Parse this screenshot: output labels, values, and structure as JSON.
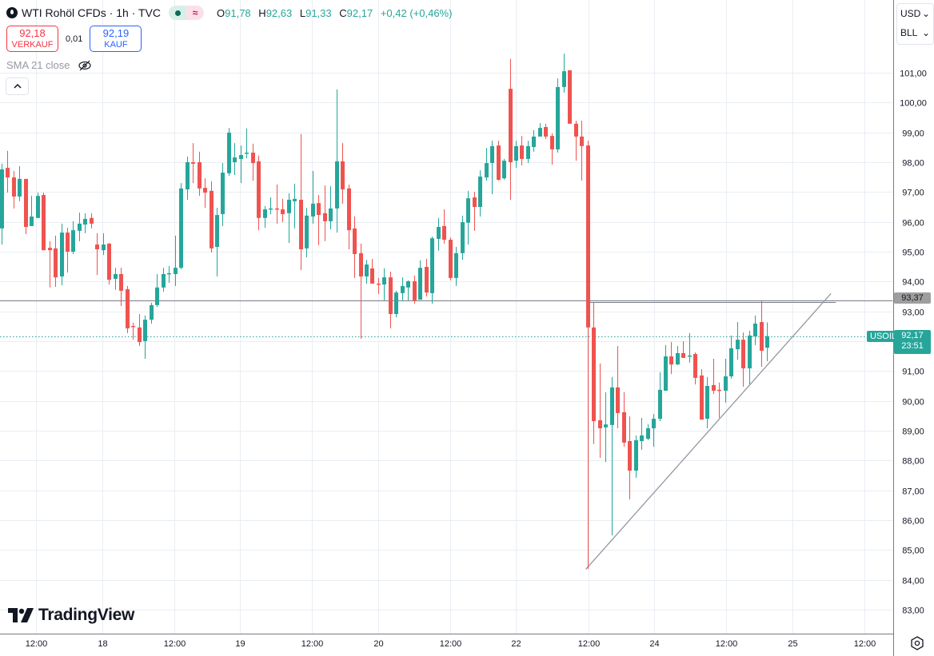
{
  "header": {
    "title": "WTI Rohöl CFDs · 1h · TVC",
    "open_label": "O",
    "open": "91,78",
    "high_label": "H",
    "high": "92,63",
    "low_label": "L",
    "low": "91,33",
    "close_label": "C",
    "close": "92,17",
    "change": "+0,42 (+0,46%)"
  },
  "trade": {
    "sell_price": "92,18",
    "sell_label": "VERKAUF",
    "spread": "0,01",
    "buy_price": "92,19",
    "buy_label": "KAUF"
  },
  "indicator": {
    "label": "SMA 21 close"
  },
  "controls": {
    "currency": "USD",
    "unit": "BLL"
  },
  "price_labels": {
    "symbol": "USOIL",
    "current": "92,17",
    "countdown": "23:51",
    "hline": "93,37"
  },
  "brand": {
    "name": "TradingView"
  },
  "colors": {
    "up": "#26a69a",
    "down": "#ef5350",
    "grid": "#e9eef3",
    "line": "#787b86"
  },
  "chart_data": {
    "type": "candlestick",
    "interval": "1h",
    "ylim": [
      82.6,
      102.5
    ],
    "y_ticks": [
      83,
      84,
      85,
      86,
      87,
      88,
      89,
      90,
      91,
      92,
      93,
      94,
      95,
      96,
      97,
      98,
      99,
      100,
      101
    ],
    "x_ticks": [
      {
        "label": "12:00",
        "i": 5.8
      },
      {
        "label": "18",
        "i": 16.9
      },
      {
        "label": "12:00",
        "i": 28.9
      },
      {
        "label": "19",
        "i": 39.9
      },
      {
        "label": "12:00",
        "i": 51.9
      },
      {
        "label": "20",
        "i": 63.0
      },
      {
        "label": "12:00",
        "i": 75.0
      },
      {
        "label": "22",
        "i": 86.0
      },
      {
        "label": "12:00",
        "i": 98.2
      },
      {
        "label": "24",
        "i": 109.1
      },
      {
        "label": "12:00",
        "i": 121.2
      },
      {
        "label": "25",
        "i": 132.3
      },
      {
        "label": "12:00",
        "i": 144.3
      }
    ],
    "current_price": 92.17,
    "horizontal_lines": [
      {
        "price": 93.37,
        "from": -1,
        "to": 149
      },
      {
        "price": 93.3,
        "from": 98,
        "to": 139.5
      }
    ],
    "trend_line": {
      "from": {
        "i": 97.7,
        "price": 84.35
      },
      "to": {
        "i": 138.7,
        "price": 93.6
      }
    },
    "ohlc": [
      [
        95.78,
        97.95,
        95.24,
        97.76
      ],
      [
        97.81,
        98.38,
        96.98,
        97.49
      ],
      [
        97.49,
        97.71,
        96.45,
        96.85
      ],
      [
        96.85,
        97.87,
        96.69,
        97.44
      ],
      [
        97.44,
        97.44,
        95.59,
        95.83
      ],
      [
        95.86,
        96.87,
        95.86,
        96.18
      ],
      [
        96.13,
        96.98,
        96.13,
        96.87
      ],
      [
        96.9,
        96.98,
        95.05,
        95.05
      ],
      [
        95.13,
        95.35,
        93.8,
        95.05
      ],
      [
        95.11,
        95.54,
        93.82,
        94.14
      ],
      [
        94.17,
        95.94,
        93.87,
        95.64
      ],
      [
        95.64,
        95.8,
        94.3,
        95.0
      ],
      [
        95.0,
        96.02,
        94.92,
        95.72
      ],
      [
        95.7,
        96.31,
        95.35,
        95.94
      ],
      [
        95.91,
        96.29,
        95.62,
        96.1
      ],
      [
        96.13,
        96.29,
        95.78,
        95.94
      ],
      [
        95.24,
        95.62,
        94.22,
        95.08
      ],
      [
        95.05,
        95.62,
        94.89,
        95.24
      ],
      [
        95.27,
        95.29,
        93.9,
        94.06
      ],
      [
        94.09,
        94.46,
        93.72,
        94.25
      ],
      [
        94.25,
        94.46,
        93.18,
        93.69
      ],
      [
        93.74,
        93.85,
        92.27,
        92.43
      ],
      [
        92.51,
        92.62,
        92.05,
        92.48
      ],
      [
        92.46,
        92.91,
        91.84,
        91.97
      ],
      [
        92.0,
        92.86,
        91.41,
        92.72
      ],
      [
        92.72,
        93.29,
        92.59,
        93.21
      ],
      [
        93.21,
        94.25,
        93.15,
        93.8
      ],
      [
        93.8,
        94.46,
        93.66,
        94.25
      ],
      [
        94.25,
        94.52,
        93.96,
        94.28
      ],
      [
        94.25,
        95.54,
        93.85,
        94.46
      ],
      [
        94.46,
        97.3,
        94.41,
        97.12
      ],
      [
        97.09,
        98.19,
        96.74,
        98.0
      ],
      [
        98.0,
        98.64,
        97.3,
        97.95
      ],
      [
        98.0,
        98.35,
        96.87,
        97.12
      ],
      [
        97.14,
        97.46,
        96.47,
        96.98
      ],
      [
        97.04,
        97.36,
        94.97,
        95.11
      ],
      [
        95.16,
        96.47,
        94.17,
        96.23
      ],
      [
        96.26,
        97.97,
        95.86,
        97.65
      ],
      [
        97.63,
        99.15,
        97.54,
        98.99
      ],
      [
        98.0,
        98.64,
        97.57,
        98.16
      ],
      [
        98.11,
        98.56,
        97.3,
        98.24
      ],
      [
        98.28,
        99.13,
        98.13,
        98.32
      ],
      [
        98.32,
        98.62,
        97.38,
        97.97
      ],
      [
        98.03,
        98.22,
        95.72,
        96.13
      ],
      [
        96.13,
        96.53,
        95.8,
        96.42
      ],
      [
        96.42,
        96.82,
        96.26,
        96.45
      ],
      [
        96.45,
        97.25,
        95.94,
        96.42
      ],
      [
        96.42,
        96.77,
        95.99,
        96.26
      ],
      [
        96.29,
        96.96,
        95.29,
        96.74
      ],
      [
        96.69,
        97.28,
        95.78,
        96.77
      ],
      [
        96.74,
        98.94,
        94.38,
        95.08
      ],
      [
        95.11,
        96.47,
        94.81,
        96.21
      ],
      [
        96.18,
        97.71,
        95.94,
        96.61
      ],
      [
        96.63,
        96.9,
        95.22,
        96.23
      ],
      [
        96.29,
        97.22,
        95.35,
        96.02
      ],
      [
        96.02,
        97.2,
        95.75,
        96.45
      ],
      [
        96.45,
        100.44,
        95.64,
        98.03
      ],
      [
        98.03,
        98.64,
        96.61,
        97.09
      ],
      [
        97.12,
        97.25,
        95.08,
        95.72
      ],
      [
        95.78,
        96.18,
        94.12,
        94.92
      ],
      [
        94.95,
        95.27,
        92.08,
        94.17
      ],
      [
        94.17,
        94.73,
        93.93,
        94.57
      ],
      [
        94.44,
        94.76,
        93.93,
        93.93
      ],
      [
        93.93,
        94.12,
        93.58,
        93.9
      ],
      [
        93.9,
        94.44,
        93.37,
        94.14
      ],
      [
        94.14,
        94.33,
        92.43,
        92.91
      ],
      [
        92.91,
        93.69,
        92.8,
        93.63
      ],
      [
        93.61,
        94.14,
        93.34,
        93.85
      ],
      [
        93.8,
        94.04,
        93.37,
        94.01
      ],
      [
        94.01,
        94.2,
        93.26,
        93.37
      ],
      [
        93.39,
        94.71,
        93.39,
        94.46
      ],
      [
        94.49,
        94.76,
        93.5,
        93.63
      ],
      [
        93.61,
        95.51,
        93.26,
        95.45
      ],
      [
        95.43,
        96.13,
        95.03,
        95.83
      ],
      [
        95.86,
        96.42,
        95.27,
        95.4
      ],
      [
        95.4,
        95.48,
        94.04,
        94.12
      ],
      [
        94.12,
        95.16,
        93.85,
        94.95
      ],
      [
        94.95,
        96.21,
        94.73,
        95.99
      ],
      [
        95.97,
        97.04,
        95.24,
        96.79
      ],
      [
        96.82,
        97.01,
        95.7,
        96.5
      ],
      [
        96.5,
        97.73,
        96.18,
        97.52
      ],
      [
        97.49,
        98.48,
        97.38,
        97.97
      ],
      [
        97.97,
        98.72,
        96.93,
        98.54
      ],
      [
        98.56,
        98.72,
        97.38,
        97.41
      ],
      [
        97.46,
        98.11,
        97.41,
        98.05
      ],
      [
        100.46,
        101.46,
        96.74,
        98.0
      ],
      [
        98.05,
        98.72,
        97.81,
        98.54
      ],
      [
        98.56,
        98.88,
        97.89,
        98.11
      ],
      [
        98.11,
        98.72,
        97.97,
        98.54
      ],
      [
        98.51,
        99.07,
        98.35,
        98.86
      ],
      [
        98.86,
        99.31,
        98.86,
        99.15
      ],
      [
        99.18,
        99.29,
        98.78,
        98.86
      ],
      [
        98.88,
        98.96,
        97.92,
        98.43
      ],
      [
        98.43,
        100.81,
        98.32,
        100.52
      ],
      [
        100.52,
        101.64,
        100.33,
        101.05
      ],
      [
        101.08,
        101.08,
        99.29,
        99.29
      ],
      [
        99.29,
        99.39,
        98.05,
        98.86
      ],
      [
        98.86,
        99.39,
        97.38,
        98.54
      ],
      [
        98.56,
        98.72,
        84.37,
        92.46
      ],
      [
        92.46,
        93.29,
        88.55,
        89.32
      ],
      [
        89.35,
        91.25,
        88.09,
        89.08
      ],
      [
        89.11,
        90.29,
        87.95,
        89.21
      ],
      [
        89.19,
        90.8,
        85.49,
        90.45
      ],
      [
        90.45,
        91.84,
        89.08,
        89.59
      ],
      [
        89.62,
        90.29,
        88.46,
        88.6
      ],
      [
        88.65,
        89.48,
        86.7,
        87.66
      ],
      [
        87.66,
        88.84,
        87.42,
        88.68
      ],
      [
        88.65,
        89.43,
        88.36,
        88.84
      ],
      [
        88.73,
        89.21,
        88.68,
        89.08
      ],
      [
        89.08,
        89.56,
        88.46,
        89.4
      ],
      [
        89.4,
        90.96,
        89.32,
        90.37
      ],
      [
        90.34,
        91.87,
        90.34,
        91.49
      ],
      [
        91.49,
        91.97,
        90.9,
        91.22
      ],
      [
        91.22,
        91.84,
        91.2,
        91.6
      ],
      [
        91.6,
        92.0,
        91.44,
        91.44
      ],
      [
        91.49,
        92.27,
        91.28,
        91.52
      ],
      [
        91.57,
        91.62,
        90.55,
        90.77
      ],
      [
        90.85,
        91.06,
        89.37,
        89.37
      ],
      [
        89.4,
        90.8,
        89.08,
        90.5
      ],
      [
        90.53,
        91.41,
        90.23,
        90.34
      ],
      [
        90.37,
        90.61,
        89.43,
        90.34
      ],
      [
        90.34,
        91.41,
        89.94,
        90.82
      ],
      [
        90.82,
        92.19,
        90.74,
        91.76
      ],
      [
        91.73,
        92.64,
        91.38,
        92.05
      ],
      [
        92.05,
        92.29,
        90.47,
        91.09
      ],
      [
        91.09,
        92.35,
        90.55,
        92.19
      ],
      [
        92.16,
        92.86,
        91.87,
        92.59
      ],
      [
        92.64,
        93.37,
        91.14,
        91.68
      ],
      [
        91.78,
        92.63,
        91.33,
        92.17
      ]
    ]
  }
}
